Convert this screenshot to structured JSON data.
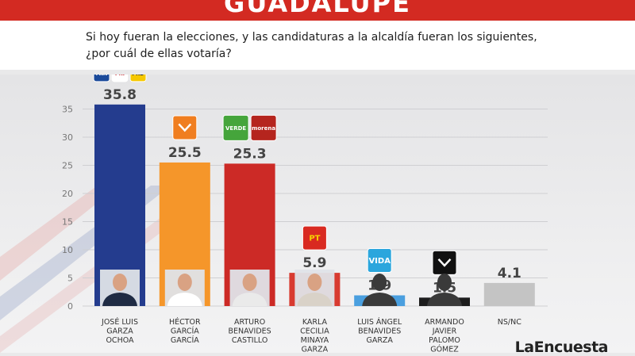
{
  "header": {
    "title": "GUADALUPE"
  },
  "question": {
    "line1": "Si hoy fueran la elecciones, y las candidaturas a la alcaldía fueran los siguientes,",
    "line2": "¿por cuál de ellas votaría?"
  },
  "colors": {
    "accent": "#d32a22"
  },
  "chart_data": {
    "type": "bar",
    "ylim": [
      0,
      35
    ],
    "yticks": [
      0,
      5,
      10,
      15,
      20,
      25,
      30,
      35
    ],
    "grid": true,
    "categories": [
      [
        "JOSÉ LUIS",
        "GARZA",
        "OCHOA"
      ],
      [
        "HÉCTOR",
        "GARCÍA",
        "GARCÍA"
      ],
      [
        "ARTURO",
        "BENAVIDES",
        "CASTILLO"
      ],
      [
        "KARLA",
        "CECILIA",
        "MINAYA",
        "GARZA"
      ],
      [
        "LUIS ÁNGEL",
        "BENAVIDES",
        "GARZA"
      ],
      [
        "ARMANDO",
        "JAVIER",
        "PALOMO",
        "GÓMEZ"
      ],
      [
        "NS/NC"
      ]
    ],
    "values": [
      35.8,
      25.5,
      25.3,
      5.9,
      1.9,
      1.5,
      4.1
    ],
    "value_labels": [
      "35.8",
      "25.5",
      "25.3",
      "5.9",
      "1.9",
      "1.5",
      "4.1"
    ],
    "bar_colors": [
      "#243c8e",
      "#f5962a",
      "#cc2a26",
      "#d83a30",
      "#4a9fdf",
      "#1d1d1d",
      "#c4c4c4"
    ],
    "party_logos": [
      [
        {
          "icon": "pan-logo",
          "text": "PAN",
          "bg": "#1b4a9a",
          "fg": "#ffffff"
        },
        {
          "icon": "pri-logo",
          "text": "PRI",
          "bg": "#ffffff",
          "fg": "#c7262c"
        },
        {
          "icon": "prd-logo",
          "text": "PRD",
          "bg": "#f6c800",
          "fg": "#222222"
        }
      ],
      [
        {
          "icon": "movimiento-ciudadano-logo",
          "text": "",
          "bg": "#f07e20",
          "fg": "#ffffff"
        }
      ],
      [
        {
          "icon": "verde-logo",
          "text": "VERDE",
          "bg": "#45a53b",
          "fg": "#ffffff"
        },
        {
          "icon": "morena-logo",
          "text": "morena",
          "bg": "#b5251e",
          "fg": "#ffffff"
        }
      ],
      [
        {
          "icon": "pt-logo",
          "text": "PT",
          "bg": "#d92a21",
          "fg": "#f6d200"
        }
      ],
      [
        {
          "icon": "vida-logo",
          "text": "VIDA",
          "bg": "#2ba6dd",
          "fg": "#ffffff"
        }
      ],
      [
        {
          "icon": "local-party-logo",
          "text": "",
          "bg": "#111111",
          "fg": "#ffffff"
        }
      ],
      []
    ]
  },
  "brand": {
    "text": "LaEncuesta"
  }
}
